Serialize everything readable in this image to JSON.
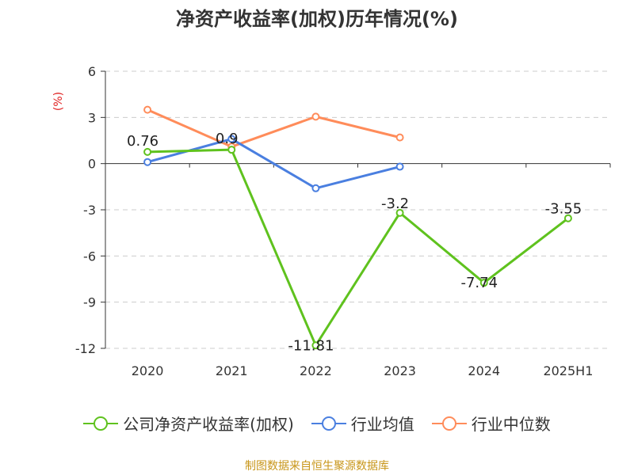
{
  "title": "净资产收益率(加权)历年情况(%)",
  "source": "制图数据来自恒生聚源数据库",
  "colors": {
    "series_company": "#5fc21e",
    "series_industry_avg": "#4a7fe0",
    "series_industry_median": "#ff8c5a",
    "grid": "#cccccc",
    "axis": "#333333",
    "ylabel": "#e02020",
    "source": "#c8961a"
  },
  "chart_data": {
    "type": "line",
    "title": "净资产收益率(加权)历年情况(%)",
    "ylabel": "(%)",
    "xlabel": "",
    "categories": [
      "2020",
      "2021",
      "2022",
      "2023",
      "2024",
      "2025H1"
    ],
    "ylim": [
      -12,
      6
    ],
    "yticks": [
      6,
      3,
      0,
      -3,
      -6,
      -9,
      -12
    ],
    "ytick_labels": [
      "6",
      "3",
      "0",
      "-3",
      "-6",
      "-9",
      "-12"
    ],
    "grid": true,
    "legend_position": "bottom",
    "series": [
      {
        "name": "公司净资产收益率(加权)",
        "values": [
          0.76,
          0.9,
          -11.81,
          -3.2,
          -7.74,
          -3.55
        ],
        "labels": [
          "0.76",
          "0.9",
          "-11.81",
          "-3.2",
          "-7.74",
          "-3.55"
        ]
      },
      {
        "name": "行业均值",
        "values": [
          0.1,
          1.6,
          -1.6,
          -0.2,
          null,
          null
        ]
      },
      {
        "name": "行业中位数",
        "values": [
          3.5,
          1.1,
          3.05,
          1.7,
          null,
          null
        ]
      }
    ]
  }
}
